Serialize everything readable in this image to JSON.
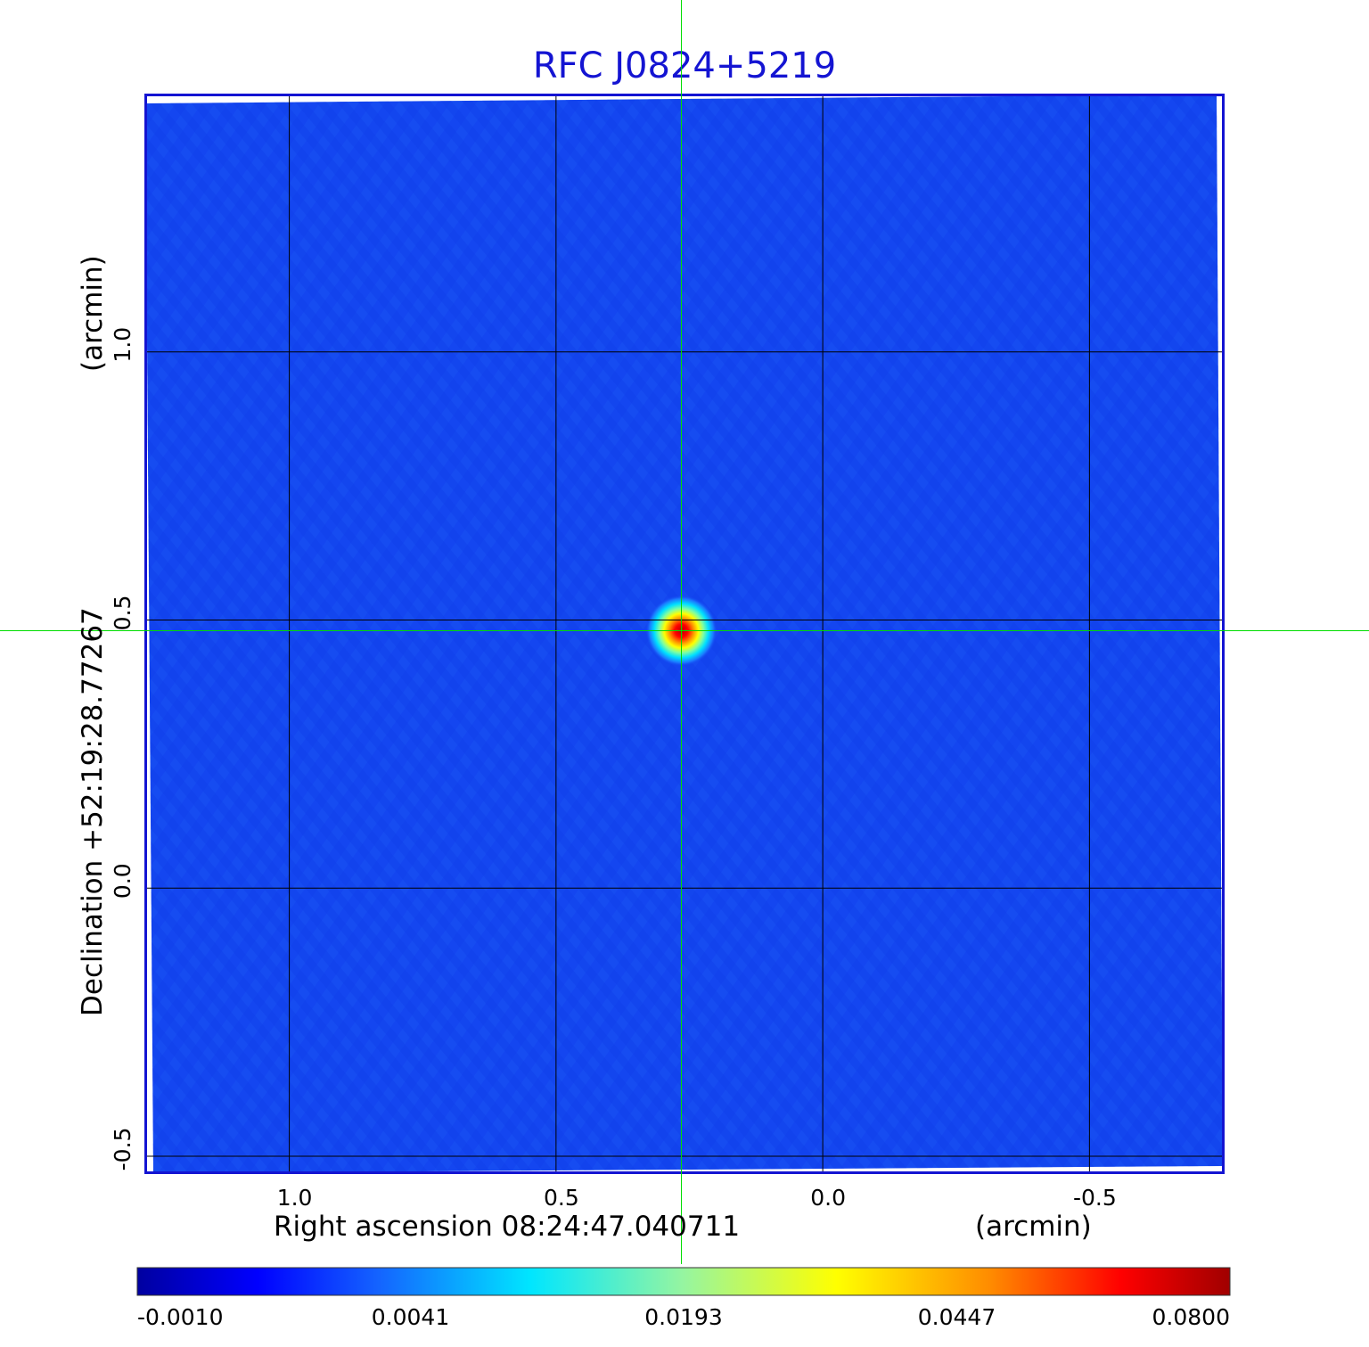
{
  "chart_data": {
    "type": "heatmap",
    "title": "RFC J0824+5219",
    "x_axis": {
      "label": "Right ascension  08:24:47.040711",
      "unit": "(arcmin)",
      "ticks": [
        1.0,
        0.5,
        0.0,
        -0.5
      ],
      "tick_labels": [
        "1.0",
        "0.5",
        "0.0",
        "-0.5"
      ],
      "range": [
        1.27,
        -0.75
      ],
      "direction": "decreasing"
    },
    "y_axis": {
      "label": "Declination  +52:19:28.77267",
      "unit": "(arcmin)",
      "ticks": [
        1.0,
        0.5,
        0.0,
        -0.5
      ],
      "tick_labels": [
        "1.0",
        "0.5",
        "0.0",
        "-0.5"
      ],
      "range": [
        -0.53,
        1.48
      ]
    },
    "grid": true,
    "crosshair": {
      "x": 0.265,
      "y": 0.48,
      "color": "#00dd00"
    },
    "source_peak": {
      "x": 0.265,
      "y": 0.48,
      "value": 0.08
    },
    "colormap": "jet",
    "colorbar": {
      "ticks": [
        -0.001,
        0.0041,
        0.0193,
        0.0447,
        0.08
      ],
      "tick_labels": [
        "-0.0010",
        "0.0041",
        "0.0193",
        "0.0447",
        "0.0800"
      ],
      "range": [
        -0.001,
        0.08
      ],
      "scale": "nonlinear"
    },
    "colors": {
      "background_field": "#1446f0",
      "frame": "#1414d2",
      "grid": "#000000"
    }
  }
}
